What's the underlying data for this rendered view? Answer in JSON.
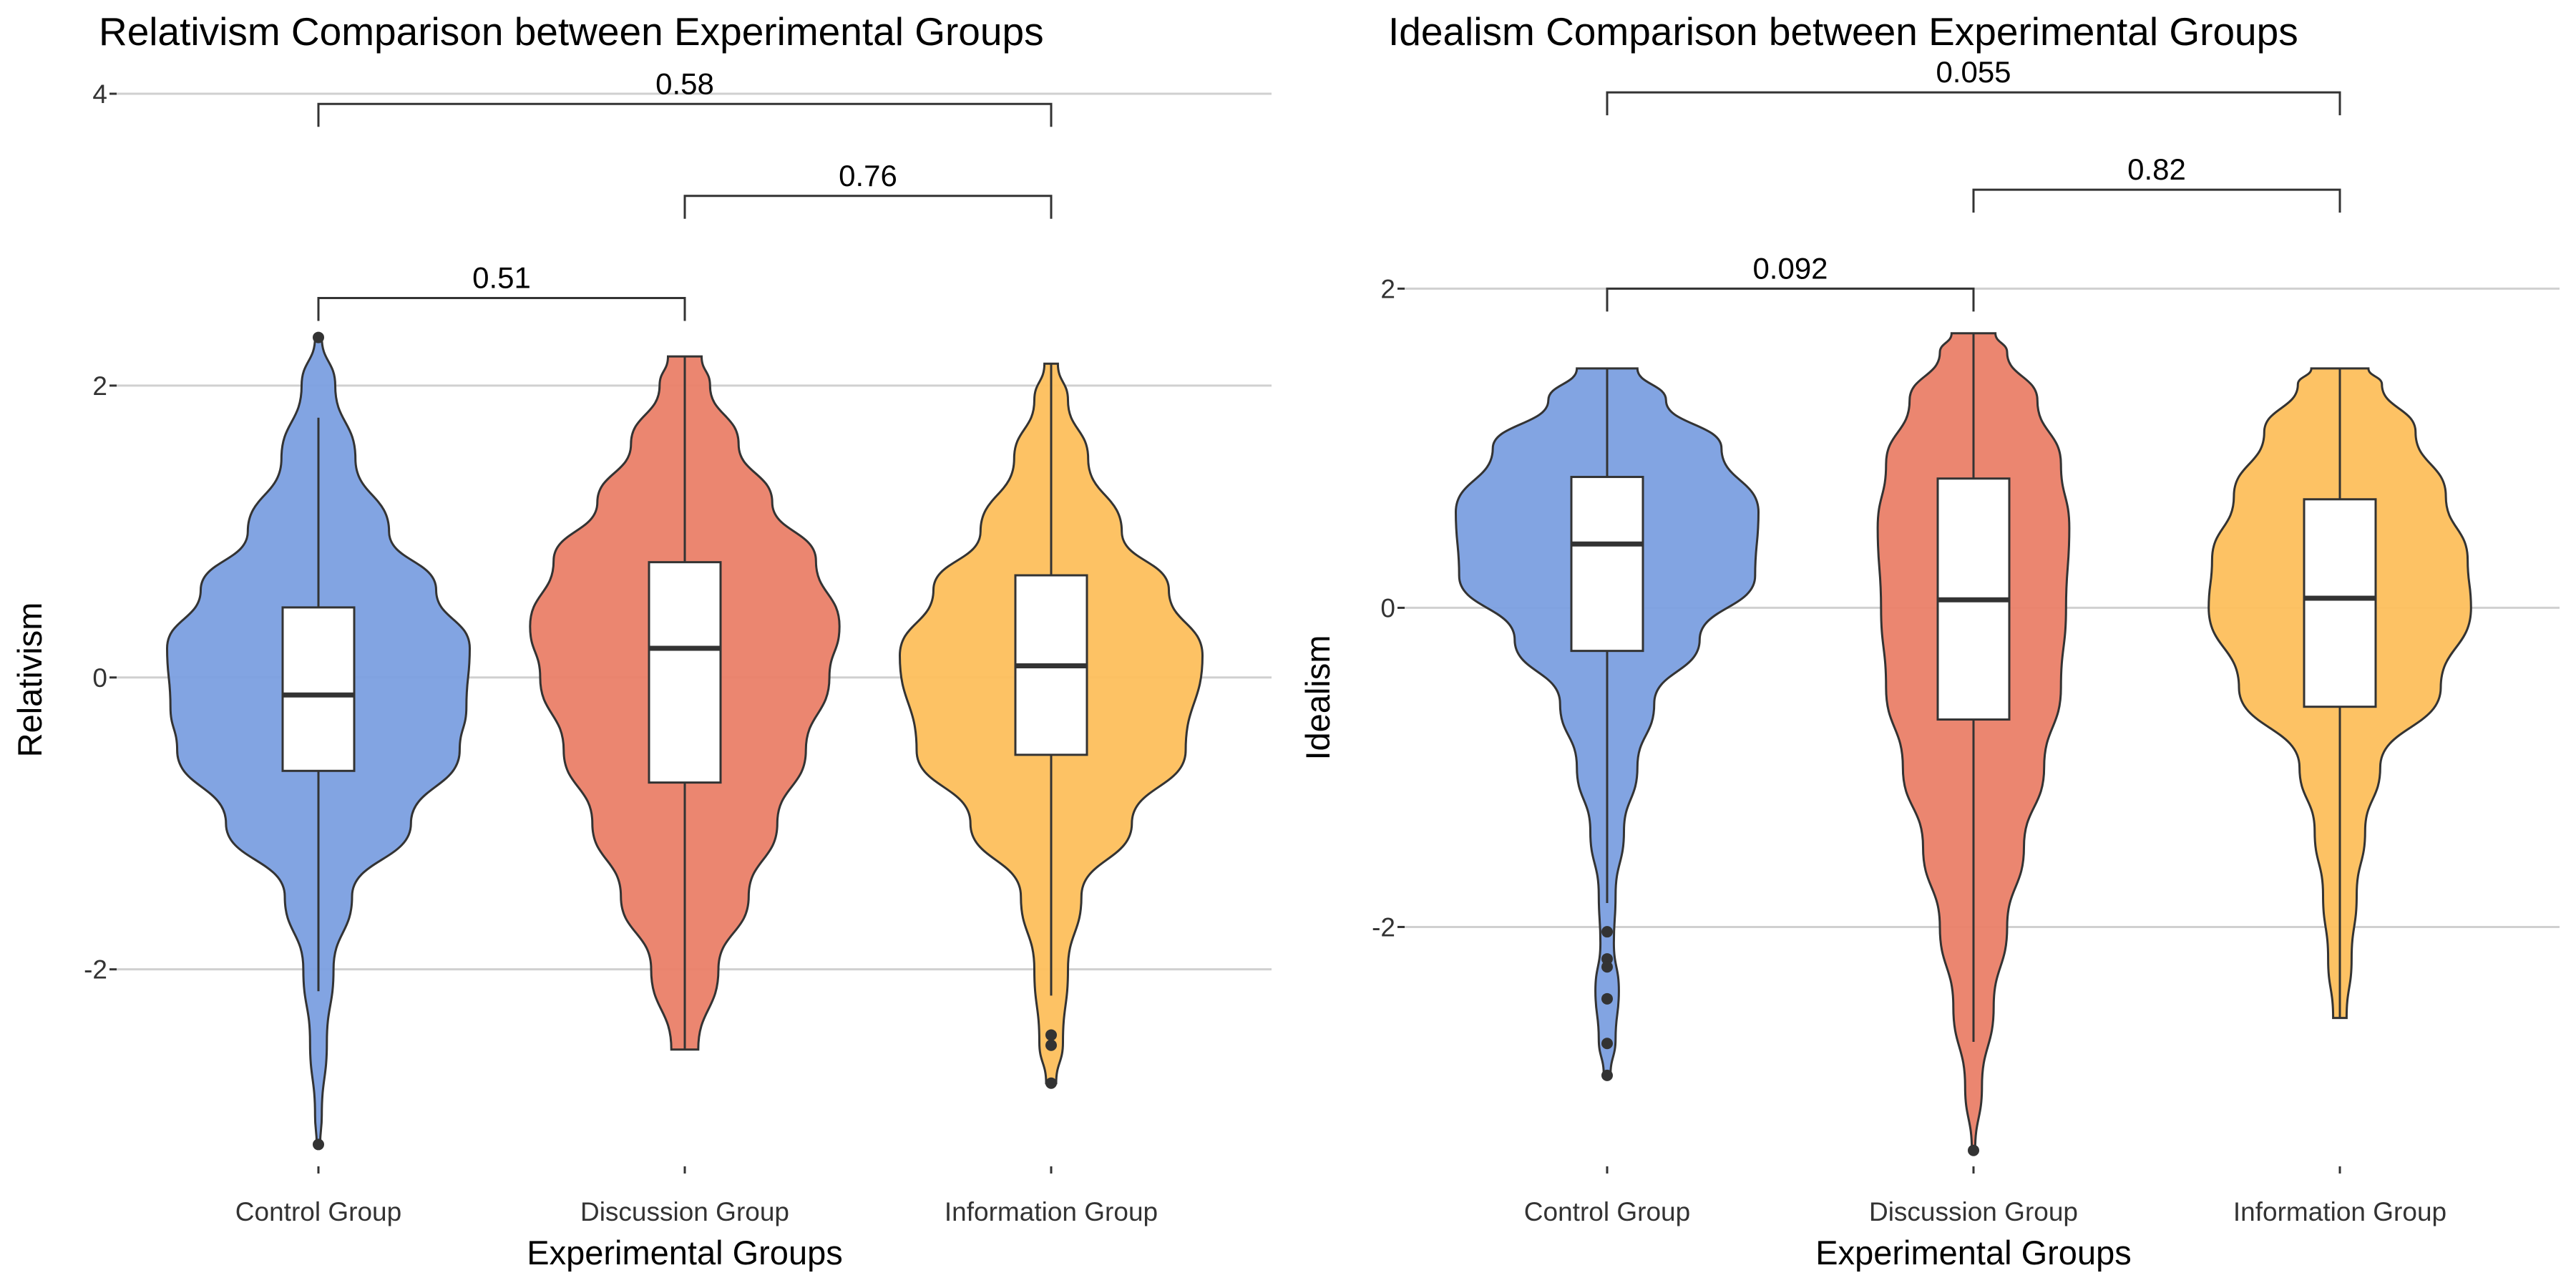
{
  "chart_data": [
    {
      "type": "violin",
      "title": "Relativism Comparison between Experimental Groups",
      "xlabel": "Experimental Groups",
      "ylabel": "Relativism",
      "categories": [
        "Control Group",
        "Discussion Group",
        "Information Group"
      ],
      "colors": [
        "#7b9fe0",
        "#ea8068",
        "#fdbf5c"
      ],
      "ylim": [
        -3.35,
        4.25
      ],
      "yticks": [
        -2,
        0,
        2,
        4
      ],
      "ytick_labels": [
        "-2",
        "0",
        "2",
        "4"
      ],
      "grid": true,
      "legend": "none",
      "groups": [
        {
          "name": "Control Group",
          "ymin": -3.2,
          "ymax": 2.33,
          "median": -0.12,
          "q1": -0.64,
          "q3": 0.48,
          "whisker_low": -2.15,
          "whisker_high": 1.78,
          "outliers": [
            2.33,
            -3.2
          ],
          "density": [
            [
              -3.2,
              0.01
            ],
            [
              -3.0,
              0.02
            ],
            [
              -2.5,
              0.05
            ],
            [
              -2.0,
              0.09
            ],
            [
              -1.5,
              0.2
            ],
            [
              -1.0,
              0.55
            ],
            [
              -0.5,
              0.84
            ],
            [
              -0.2,
              0.88
            ],
            [
              0.2,
              0.9
            ],
            [
              0.6,
              0.7
            ],
            [
              1.0,
              0.42
            ],
            [
              1.5,
              0.22
            ],
            [
              2.0,
              0.1
            ],
            [
              2.33,
              0.02
            ]
          ]
        },
        {
          "name": "Discussion Group",
          "ymin": -2.55,
          "ymax": 2.2,
          "median": 0.2,
          "q1": -0.72,
          "q3": 0.79,
          "whisker_low": -2.55,
          "whisker_high": 2.2,
          "outliers": [],
          "density": [
            [
              -2.55,
              0.08
            ],
            [
              -2.0,
              0.2
            ],
            [
              -1.5,
              0.38
            ],
            [
              -1.0,
              0.55
            ],
            [
              -0.5,
              0.72
            ],
            [
              0.0,
              0.86
            ],
            [
              0.35,
              0.92
            ],
            [
              0.8,
              0.78
            ],
            [
              1.2,
              0.52
            ],
            [
              1.6,
              0.32
            ],
            [
              2.0,
              0.15
            ],
            [
              2.2,
              0.1
            ]
          ]
        },
        {
          "name": "Information Group",
          "ymin": -2.78,
          "ymax": 2.15,
          "median": 0.08,
          "q1": -0.53,
          "q3": 0.7,
          "whisker_low": -2.18,
          "whisker_high": 2.15,
          "outliers": [
            -2.45,
            -2.52,
            -2.78
          ],
          "density": [
            [
              -2.78,
              0.03
            ],
            [
              -2.5,
              0.07
            ],
            [
              -2.0,
              0.1
            ],
            [
              -1.5,
              0.18
            ],
            [
              -1.0,
              0.48
            ],
            [
              -0.5,
              0.8
            ],
            [
              0.15,
              0.9
            ],
            [
              0.6,
              0.7
            ],
            [
              1.0,
              0.42
            ],
            [
              1.5,
              0.22
            ],
            [
              1.9,
              0.1
            ],
            [
              2.15,
              0.04
            ]
          ]
        }
      ],
      "comparisons": [
        {
          "from": "Control Group",
          "to": "Discussion Group",
          "label": "0.51",
          "y": 2.6
        },
        {
          "from": "Discussion Group",
          "to": "Information Group",
          "label": "0.76",
          "y": 3.3
        },
        {
          "from": "Control Group",
          "to": "Information Group",
          "label": "0.58",
          "y": 3.93
        }
      ]
    },
    {
      "type": "violin",
      "title": "Idealism Comparison between Experimental Groups",
      "xlabel": "Experimental Groups",
      "ylabel": "Idealism",
      "categories": [
        "Control Group",
        "Discussion Group",
        "Information Group"
      ],
      "colors": [
        "#7b9fe0",
        "#ea8068",
        "#fdbf5c"
      ],
      "ylim": [
        -3.5,
        3.45
      ],
      "yticks": [
        -2,
        0,
        2
      ],
      "ytick_labels": [
        "-2",
        "0",
        "2"
      ],
      "grid": true,
      "legend": "none",
      "groups": [
        {
          "name": "Control Group",
          "ymin": -2.93,
          "ymax": 1.5,
          "median": 0.4,
          "q1": -0.27,
          "q3": 0.82,
          "whisker_low": -1.85,
          "whisker_high": 1.5,
          "outliers": [
            -2.03,
            -2.2,
            -2.25,
            -2.45,
            -2.73,
            -2.93
          ],
          "density": [
            [
              -2.93,
              0.02
            ],
            [
              -2.7,
              0.05
            ],
            [
              -2.4,
              0.07
            ],
            [
              -2.1,
              0.04
            ],
            [
              -1.8,
              0.05
            ],
            [
              -1.4,
              0.1
            ],
            [
              -1.0,
              0.18
            ],
            [
              -0.6,
              0.28
            ],
            [
              -0.2,
              0.55
            ],
            [
              0.2,
              0.88
            ],
            [
              0.6,
              0.9
            ],
            [
              1.0,
              0.68
            ],
            [
              1.3,
              0.35
            ],
            [
              1.5,
              0.18
            ]
          ]
        },
        {
          "name": "Discussion Group",
          "ymin": -3.4,
          "ymax": 1.72,
          "median": 0.05,
          "q1": -0.7,
          "q3": 0.81,
          "whisker_low": -2.72,
          "whisker_high": 1.72,
          "outliers": [
            -3.4
          ],
          "density": [
            [
              -3.4,
              0.01
            ],
            [
              -3.0,
              0.05
            ],
            [
              -2.5,
              0.12
            ],
            [
              -2.0,
              0.2
            ],
            [
              -1.5,
              0.3
            ],
            [
              -1.0,
              0.42
            ],
            [
              -0.5,
              0.52
            ],
            [
              0.0,
              0.55
            ],
            [
              0.5,
              0.57
            ],
            [
              0.9,
              0.52
            ],
            [
              1.3,
              0.38
            ],
            [
              1.6,
              0.2
            ],
            [
              1.72,
              0.13
            ]
          ]
        },
        {
          "name": "Information Group",
          "ymin": -2.57,
          "ymax": 1.5,
          "median": 0.06,
          "q1": -0.62,
          "q3": 0.68,
          "whisker_low": -2.57,
          "whisker_high": 1.5,
          "outliers": [],
          "density": [
            [
              -2.57,
              0.04
            ],
            [
              -2.2,
              0.07
            ],
            [
              -1.8,
              0.1
            ],
            [
              -1.4,
              0.15
            ],
            [
              -1.0,
              0.24
            ],
            [
              -0.5,
              0.6
            ],
            [
              0.0,
              0.78
            ],
            [
              0.3,
              0.76
            ],
            [
              0.7,
              0.63
            ],
            [
              1.1,
              0.45
            ],
            [
              1.4,
              0.25
            ],
            [
              1.5,
              0.17
            ]
          ]
        }
      ],
      "comparisons": [
        {
          "from": "Control Group",
          "to": "Discussion Group",
          "label": "0.092",
          "y": 2.0
        },
        {
          "from": "Discussion Group",
          "to": "Information Group",
          "label": "0.82",
          "y": 2.62
        },
        {
          "from": "Control Group",
          "to": "Information Group",
          "label": "0.055",
          "y": 3.23
        }
      ]
    }
  ]
}
